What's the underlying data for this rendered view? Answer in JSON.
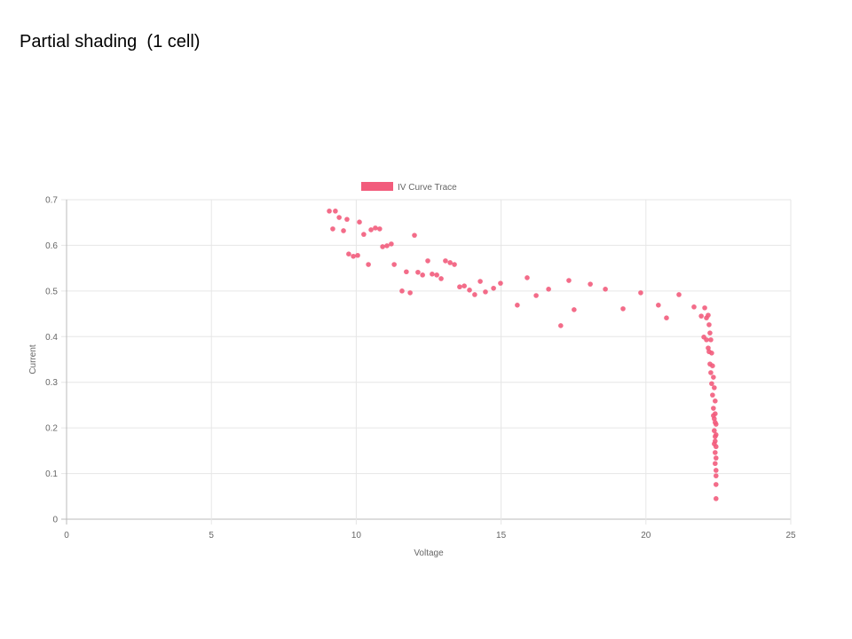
{
  "slide": {
    "title": "Partial shading  (1 cell)"
  },
  "chart_data": {
    "type": "scatter",
    "x_label": "Voltage",
    "y_label": "Current",
    "xlim": [
      0,
      25
    ],
    "ylim": [
      0,
      0.7
    ],
    "xticks": [
      0,
      5,
      10,
      15,
      20,
      25
    ],
    "yticks": [
      0,
      0.1,
      0.2,
      0.3,
      0.4,
      0.5,
      0.6,
      0.7
    ],
    "grid": true,
    "legend": "top",
    "series": [
      {
        "name": "IV Curve Trace",
        "color": "#f25c7c",
        "x": [
          9.07,
          9.28,
          9.19,
          9.41,
          9.56,
          9.68,
          9.74,
          9.9,
          10.05,
          10.11,
          10.26,
          10.42,
          10.51,
          10.66,
          10.81,
          10.91,
          11.06,
          11.21,
          11.31,
          11.58,
          11.73,
          11.86,
          12.01,
          12.13,
          12.29,
          12.47,
          12.62,
          12.78,
          12.93,
          13.08,
          13.24,
          13.39,
          13.57,
          13.73,
          13.91,
          14.09,
          14.28,
          14.46,
          14.74,
          14.98,
          15.56,
          15.9,
          16.21,
          16.64,
          17.06,
          17.34,
          17.52,
          18.08,
          18.6,
          19.21,
          19.82,
          20.43,
          20.71,
          21.14,
          21.66,
          21.91,
          22.03,
          22.09,
          22.15,
          22.0,
          22.09,
          22.18,
          22.21,
          22.15,
          22.24,
          22.18,
          22.27,
          22.21,
          22.3,
          22.24,
          22.33,
          22.27,
          22.36,
          22.3,
          22.39,
          22.33,
          22.39,
          22.36,
          22.42,
          22.36,
          22.42,
          22.39,
          22.42,
          22.39,
          22.42,
          22.39,
          22.42,
          22.42,
          22.42,
          22.42,
          22.39,
          22.33,
          22.39,
          22.36
        ],
        "values": [
          0.675,
          0.675,
          0.636,
          0.661,
          0.632,
          0.657,
          0.581,
          0.576,
          0.578,
          0.651,
          0.624,
          0.558,
          0.634,
          0.638,
          0.636,
          0.597,
          0.599,
          0.603,
          0.558,
          0.5,
          0.542,
          0.496,
          0.622,
          0.541,
          0.535,
          0.566,
          0.537,
          0.535,
          0.527,
          0.566,
          0.562,
          0.558,
          0.509,
          0.511,
          0.502,
          0.492,
          0.521,
          0.498,
          0.506,
          0.517,
          0.469,
          0.529,
          0.49,
          0.504,
          0.424,
          0.523,
          0.459,
          0.515,
          0.504,
          0.461,
          0.496,
          0.469,
          0.441,
          0.492,
          0.465,
          0.445,
          0.463,
          0.441,
          0.447,
          0.399,
          0.393,
          0.426,
          0.408,
          0.375,
          0.393,
          0.367,
          0.364,
          0.34,
          0.336,
          0.321,
          0.311,
          0.297,
          0.288,
          0.272,
          0.259,
          0.243,
          0.231,
          0.22,
          0.208,
          0.194,
          0.185,
          0.171,
          0.159,
          0.146,
          0.134,
          0.122,
          0.107,
          0.095,
          0.076,
          0.045,
          0.212,
          0.227,
          0.181,
          0.165
        ]
      }
    ]
  }
}
